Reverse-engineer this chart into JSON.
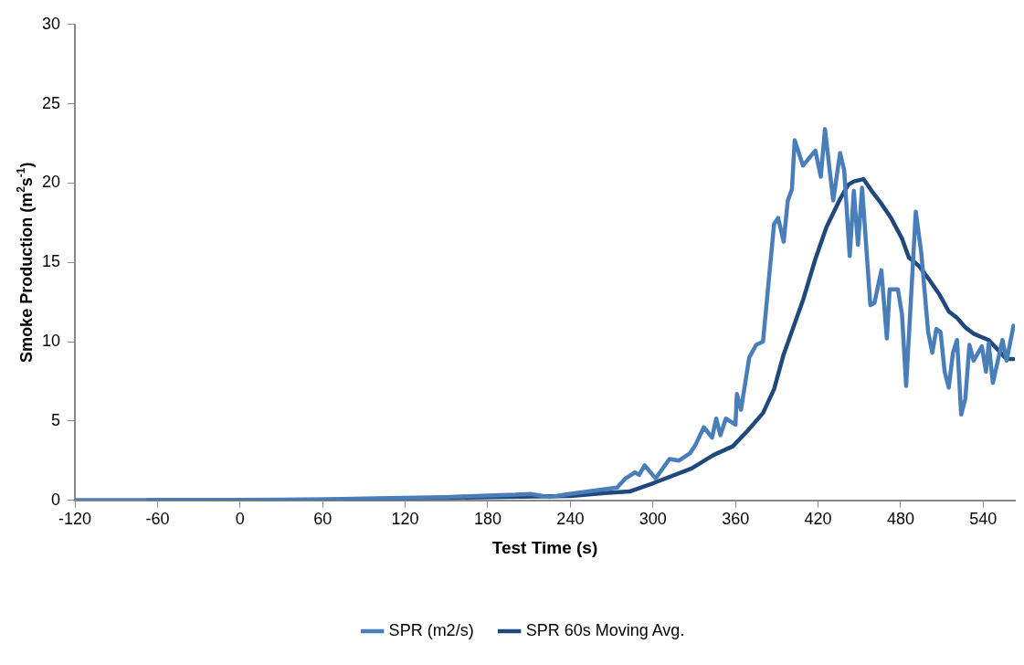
{
  "chart_data": {
    "type": "line",
    "xlabel": "Test Time (s)",
    "ylabel": "Smoke Production (m$^{2}$s$^{-1}$)",
    "xlim": [
      -120,
      563
    ],
    "xticks": [
      -120,
      -60,
      0,
      60,
      120,
      180,
      240,
      300,
      360,
      420,
      480,
      540
    ],
    "ylim": [
      0,
      30
    ],
    "yticks": [
      0,
      5,
      10,
      15,
      20,
      25,
      30
    ],
    "grid": false,
    "legend": "bottom",
    "marker": "none",
    "line_style": "solid",
    "series": [
      {
        "name": "SPR (m2/s)",
        "color": "#4a7ebb",
        "x": [
          -120,
          -60,
          0,
          60,
          90,
          120,
          150,
          180,
          200,
          211,
          225,
          238,
          274,
          280,
          287,
          290,
          294,
          302,
          312,
          319,
          327,
          331,
          337,
          343,
          346,
          349,
          353,
          360,
          361,
          364,
          370,
          375,
          380,
          388,
          391,
          395,
          398,
          401,
          403,
          409,
          418,
          422,
          425,
          431,
          436,
          439,
          443,
          446,
          449,
          452,
          458,
          461,
          466,
          470,
          472,
          478,
          481,
          484,
          491,
          495,
          500,
          503,
          506,
          509,
          512,
          515,
          518,
          521,
          524,
          527,
          530,
          533,
          539,
          542,
          544,
          547,
          554,
          557,
          562
        ],
        "values": [
          0,
          0,
          0.02,
          0.05,
          0.1,
          0.15,
          0.2,
          0.3,
          0.35,
          0.4,
          0.2,
          0.38,
          0.8,
          1.37,
          1.76,
          1.6,
          2.2,
          1.37,
          2.6,
          2.5,
          2.96,
          3.5,
          4.6,
          3.95,
          5.15,
          4.1,
          5.15,
          4.77,
          6.7,
          5.7,
          9,
          9.8,
          10,
          17.4,
          17.8,
          16.3,
          18.9,
          19.6,
          22.7,
          21.1,
          22.05,
          20.4,
          23.4,
          18.9,
          21.9,
          20.8,
          15.4,
          19.5,
          16.1,
          19.7,
          12.3,
          12.45,
          14.5,
          10.2,
          13.3,
          13.3,
          11.7,
          7.2,
          18.2,
          15.6,
          10.6,
          9.3,
          10.8,
          10.6,
          8.1,
          7.1,
          9.3,
          10.1,
          5.4,
          6.4,
          9.8,
          8.8,
          9.7,
          8.1,
          9.9,
          7.4,
          10.1,
          8.8,
          11
        ]
      },
      {
        "name": "SPR 60s Moving Avg.",
        "color": "#1f497d",
        "x": [
          -67,
          0,
          60,
          120,
          180,
          240,
          265,
          283,
          301,
          328,
          344,
          358,
          369,
          380,
          388,
          395,
          409,
          418,
          426,
          436,
          442,
          446,
          453,
          459,
          466,
          473,
          481,
          486,
          493,
          500,
          508,
          515,
          521,
          527,
          533,
          544,
          557,
          562
        ],
        "values": [
          0,
          0,
          0.03,
          0.1,
          0.2,
          0.27,
          0.45,
          0.55,
          1.1,
          2,
          2.85,
          3.4,
          4.4,
          5.5,
          7,
          9.2,
          12.6,
          15.2,
          17.2,
          19,
          19.9,
          20.1,
          20.25,
          19.5,
          18.7,
          17.8,
          16.5,
          15.3,
          14.8,
          14,
          13,
          11.9,
          11.5,
          10.9,
          10.5,
          10.1,
          8.9,
          8.9
        ]
      }
    ]
  }
}
